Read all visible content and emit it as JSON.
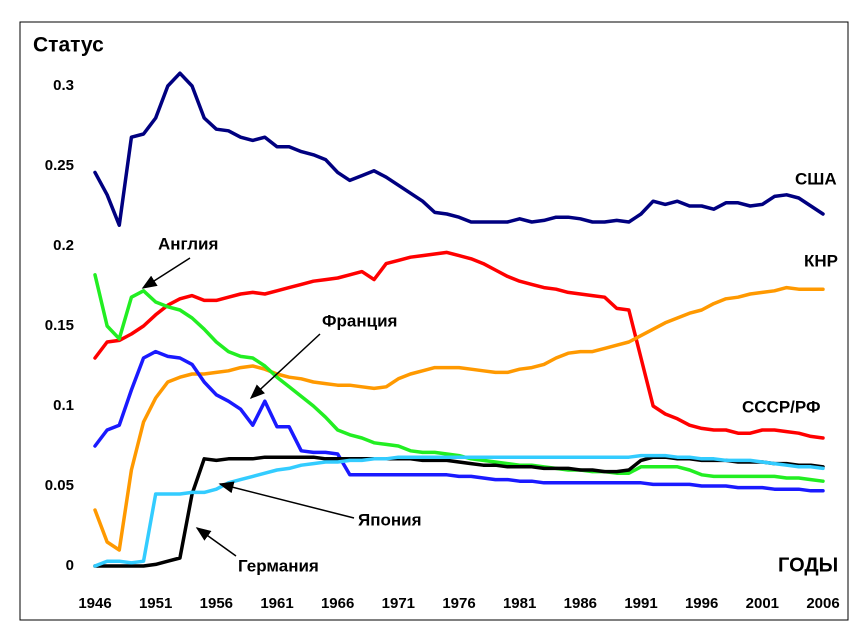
{
  "chart_data": {
    "type": "line",
    "y_label": "Статус",
    "x_label": "ГОДЫ",
    "x": [
      1946,
      1947,
      1948,
      1949,
      1950,
      1951,
      1952,
      1953,
      1954,
      1955,
      1956,
      1957,
      1958,
      1959,
      1960,
      1961,
      1962,
      1963,
      1964,
      1965,
      1966,
      1967,
      1968,
      1969,
      1970,
      1971,
      1972,
      1973,
      1974,
      1975,
      1976,
      1977,
      1978,
      1979,
      1980,
      1981,
      1982,
      1983,
      1984,
      1985,
      1986,
      1987,
      1988,
      1989,
      1990,
      1991,
      1992,
      1993,
      1994,
      1995,
      1996,
      1997,
      1998,
      1999,
      2000,
      2001,
      2002,
      2003,
      2004,
      2005,
      2006
    ],
    "xlim": [
      1946,
      2006
    ],
    "xticks": [
      1946,
      1951,
      1956,
      1961,
      1966,
      1971,
      1976,
      1981,
      1986,
      1991,
      1996,
      2001,
      2006
    ],
    "ylim": [
      0,
      0.3
    ],
    "yticks": [
      0,
      0.05,
      0.1,
      0.15,
      0.2,
      0.25,
      0.3
    ],
    "series": [
      {
        "name": "США",
        "color": "#000080",
        "values": [
          0.246,
          0.232,
          0.213,
          0.268,
          0.27,
          0.28,
          0.3,
          0.308,
          0.3,
          0.28,
          0.273,
          0.272,
          0.268,
          0.266,
          0.268,
          0.262,
          0.262,
          0.259,
          0.257,
          0.254,
          0.246,
          0.241,
          0.244,
          0.247,
          0.243,
          0.238,
          0.233,
          0.228,
          0.221,
          0.22,
          0.218,
          0.215,
          0.215,
          0.215,
          0.215,
          0.217,
          0.215,
          0.216,
          0.218,
          0.218,
          0.217,
          0.215,
          0.215,
          0.216,
          0.215,
          0.22,
          0.228,
          0.226,
          0.228,
          0.225,
          0.225,
          0.223,
          0.227,
          0.227,
          0.225,
          0.226,
          0.231,
          0.232,
          0.23,
          0.225,
          0.22
        ]
      },
      {
        "name": "СССР/РФ",
        "color": "#ff0000",
        "values": [
          0.13,
          0.14,
          0.141,
          0.145,
          0.15,
          0.157,
          0.163,
          0.167,
          0.169,
          0.166,
          0.166,
          0.168,
          0.17,
          0.171,
          0.17,
          0.172,
          0.174,
          0.176,
          0.178,
          0.179,
          0.18,
          0.182,
          0.184,
          0.179,
          0.189,
          0.191,
          0.193,
          0.194,
          0.195,
          0.196,
          0.194,
          0.192,
          0.189,
          0.185,
          0.181,
          0.178,
          0.176,
          0.174,
          0.173,
          0.171,
          0.17,
          0.169,
          0.168,
          0.161,
          0.16,
          0.13,
          0.1,
          0.095,
          0.092,
          0.088,
          0.086,
          0.085,
          0.085,
          0.083,
          0.083,
          0.085,
          0.085,
          0.084,
          0.083,
          0.081,
          0.08
        ]
      },
      {
        "name": "КНР",
        "color": "#ff9900",
        "values": [
          0.035,
          0.015,
          0.01,
          0.06,
          0.09,
          0.105,
          0.115,
          0.118,
          0.12,
          0.12,
          0.121,
          0.122,
          0.124,
          0.125,
          0.123,
          0.12,
          0.118,
          0.117,
          0.115,
          0.114,
          0.113,
          0.113,
          0.112,
          0.111,
          0.112,
          0.117,
          0.12,
          0.122,
          0.124,
          0.124,
          0.124,
          0.123,
          0.122,
          0.121,
          0.121,
          0.123,
          0.124,
          0.126,
          0.13,
          0.133,
          0.134,
          0.134,
          0.136,
          0.138,
          0.14,
          0.144,
          0.148,
          0.152,
          0.155,
          0.158,
          0.16,
          0.164,
          0.167,
          0.168,
          0.17,
          0.171,
          0.172,
          0.174,
          0.173,
          0.173,
          0.173
        ]
      },
      {
        "name": "Англия",
        "color": "#22ee22",
        "values": [
          0.182,
          0.15,
          0.142,
          0.168,
          0.172,
          0.165,
          0.162,
          0.16,
          0.155,
          0.148,
          0.14,
          0.134,
          0.131,
          0.13,
          0.125,
          0.118,
          0.112,
          0.106,
          0.1,
          0.093,
          0.085,
          0.082,
          0.08,
          0.077,
          0.076,
          0.075,
          0.072,
          0.071,
          0.071,
          0.07,
          0.069,
          0.067,
          0.066,
          0.065,
          0.064,
          0.063,
          0.063,
          0.062,
          0.061,
          0.06,
          0.06,
          0.059,
          0.059,
          0.058,
          0.058,
          0.062,
          0.062,
          0.062,
          0.062,
          0.06,
          0.057,
          0.056,
          0.056,
          0.056,
          0.056,
          0.056,
          0.056,
          0.055,
          0.055,
          0.054,
          0.053
        ]
      },
      {
        "name": "Франция",
        "color": "#1a1aff",
        "values": [
          0.075,
          0.085,
          0.088,
          0.11,
          0.13,
          0.134,
          0.131,
          0.13,
          0.126,
          0.115,
          0.107,
          0.103,
          0.098,
          0.088,
          0.103,
          0.087,
          0.087,
          0.072,
          0.071,
          0.071,
          0.07,
          0.057,
          0.057,
          0.057,
          0.057,
          0.057,
          0.057,
          0.057,
          0.057,
          0.057,
          0.056,
          0.056,
          0.055,
          0.054,
          0.054,
          0.053,
          0.053,
          0.052,
          0.052,
          0.052,
          0.052,
          0.052,
          0.052,
          0.052,
          0.052,
          0.052,
          0.051,
          0.051,
          0.051,
          0.051,
          0.05,
          0.05,
          0.05,
          0.049,
          0.049,
          0.049,
          0.048,
          0.048,
          0.048,
          0.047,
          0.047
        ]
      },
      {
        "name": "Германия",
        "color": "#000000",
        "values": [
          0,
          0,
          0,
          0,
          0,
          0.001,
          0.003,
          0.005,
          0.045,
          0.067,
          0.066,
          0.067,
          0.067,
          0.067,
          0.068,
          0.068,
          0.068,
          0.068,
          0.068,
          0.067,
          0.067,
          0.067,
          0.067,
          0.067,
          0.067,
          0.067,
          0.067,
          0.066,
          0.066,
          0.066,
          0.065,
          0.064,
          0.063,
          0.063,
          0.062,
          0.062,
          0.062,
          0.061,
          0.061,
          0.061,
          0.06,
          0.06,
          0.059,
          0.059,
          0.06,
          0.066,
          0.068,
          0.068,
          0.067,
          0.067,
          0.066,
          0.066,
          0.066,
          0.065,
          0.065,
          0.065,
          0.064,
          0.064,
          0.063,
          0.063,
          0.062
        ]
      },
      {
        "name": "Япония",
        "color": "#33ccff",
        "values": [
          0,
          0.003,
          0.003,
          0.002,
          0.003,
          0.045,
          0.045,
          0.045,
          0.046,
          0.046,
          0.048,
          0.052,
          0.054,
          0.056,
          0.058,
          0.06,
          0.061,
          0.063,
          0.064,
          0.065,
          0.065,
          0.066,
          0.066,
          0.067,
          0.067,
          0.068,
          0.068,
          0.068,
          0.068,
          0.068,
          0.068,
          0.068,
          0.068,
          0.068,
          0.068,
          0.068,
          0.068,
          0.068,
          0.068,
          0.068,
          0.068,
          0.068,
          0.068,
          0.068,
          0.068,
          0.069,
          0.069,
          0.069,
          0.068,
          0.068,
          0.067,
          0.067,
          0.066,
          0.066,
          0.066,
          0.065,
          0.064,
          0.063,
          0.062,
          0.062,
          0.061
        ]
      }
    ]
  }
}
